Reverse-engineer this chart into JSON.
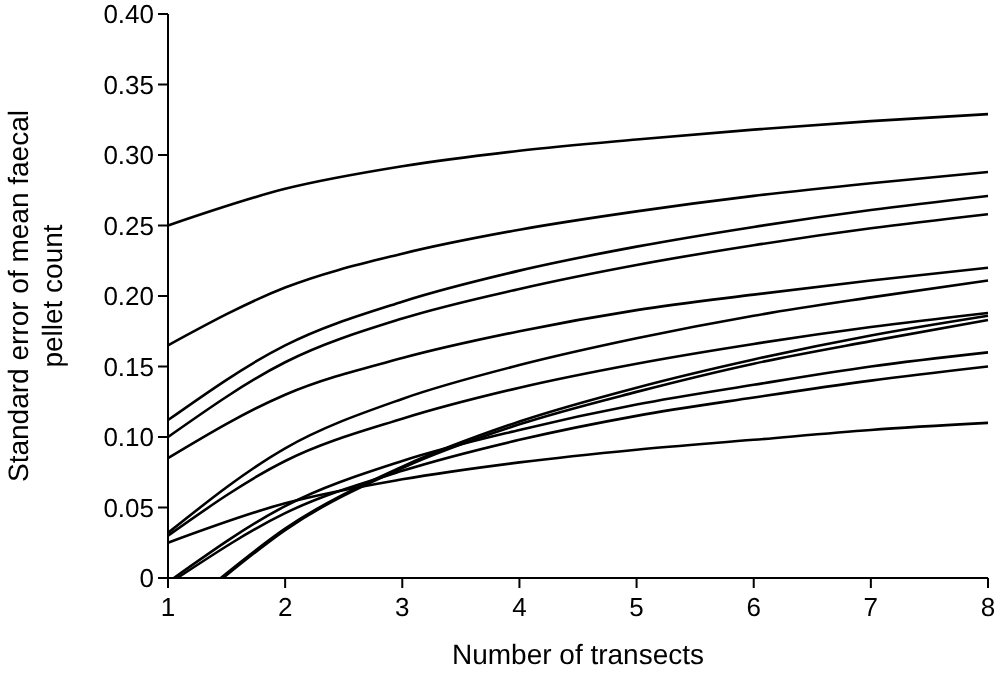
{
  "chart_data": {
    "type": "line",
    "xlabel": "Number of transects",
    "ylabel": "Standard error of mean faecal\npellet count",
    "xlim": [
      1,
      8
    ],
    "xticks": [
      1,
      2,
      3,
      4,
      5,
      6,
      7,
      8
    ],
    "ylim": [
      0,
      0.4
    ],
    "yticks": [
      {
        "value": 0,
        "label": "0"
      },
      {
        "value": 0.05,
        "label": "0.05"
      },
      {
        "value": 0.1,
        "label": "0.10"
      },
      {
        "value": 0.15,
        "label": "0.15"
      },
      {
        "value": 0.2,
        "label": "0.20"
      },
      {
        "value": 0.25,
        "label": "0.25"
      },
      {
        "value": 0.3,
        "label": "0.30"
      },
      {
        "value": 0.35,
        "label": "0.35"
      },
      {
        "value": 0.4,
        "label": "0.40"
      }
    ],
    "grid": false,
    "marker": "none",
    "line_style": "solid",
    "x": [
      1,
      2,
      3,
      4,
      5,
      6,
      7,
      8
    ],
    "series": [
      {
        "color": "#000000",
        "values": [
          0.25,
          0.276,
          0.292,
          0.303,
          0.311,
          0.318,
          0.324,
          0.329
        ]
      },
      {
        "color": "#000000",
        "values": [
          0.165,
          0.206,
          0.23,
          0.247,
          0.26,
          0.271,
          0.28,
          0.288
        ]
      },
      {
        "color": "#000000",
        "values": [
          0.112,
          0.165,
          0.196,
          0.218,
          0.235,
          0.249,
          0.261,
          0.271
        ]
      },
      {
        "color": "#000000",
        "values": [
          0.1,
          0.153,
          0.184,
          0.205,
          0.222,
          0.236,
          0.248,
          0.258
        ]
      },
      {
        "color": "#000000",
        "values": [
          0.085,
          0.13,
          0.156,
          0.175,
          0.19,
          0.201,
          0.211,
          0.22
        ]
      },
      {
        "color": "#000000",
        "values": [
          0.032,
          0.092,
          0.127,
          0.151,
          0.17,
          0.186,
          0.199,
          0.211
        ]
      },
      {
        "color": "#000000",
        "values": [
          0.03,
          0.083,
          0.113,
          0.135,
          0.152,
          0.166,
          0.178,
          0.188
        ]
      },
      {
        "color": "#000000",
        "values": [
          0.025,
          0.053,
          0.07,
          0.082,
          0.091,
          0.098,
          0.105,
          0.11
        ]
      },
      {
        "color": "#000000",
        "x": [
          1.05,
          2,
          3,
          4,
          5,
          6,
          7,
          8
        ],
        "values": [
          0,
          0.051,
          0.083,
          0.105,
          0.123,
          0.137,
          0.15,
          0.16
        ]
      },
      {
        "color": "#000000",
        "x": [
          1.08,
          2,
          3,
          4,
          5,
          6,
          7,
          8
        ],
        "values": [
          0,
          0.046,
          0.076,
          0.098,
          0.115,
          0.128,
          0.14,
          0.15
        ]
      },
      {
        "color": "#000000",
        "x": [
          1.45,
          2,
          3,
          4,
          5,
          6,
          7,
          8
        ],
        "values": [
          0,
          0.035,
          0.079,
          0.111,
          0.135,
          0.155,
          0.172,
          0.186
        ]
      },
      {
        "color": "#000000",
        "x": [
          1.47,
          2,
          3,
          4,
          5,
          6,
          7,
          8
        ],
        "values": [
          0,
          0.034,
          0.078,
          0.109,
          0.132,
          0.152,
          0.168,
          0.183
        ]
      }
    ]
  }
}
